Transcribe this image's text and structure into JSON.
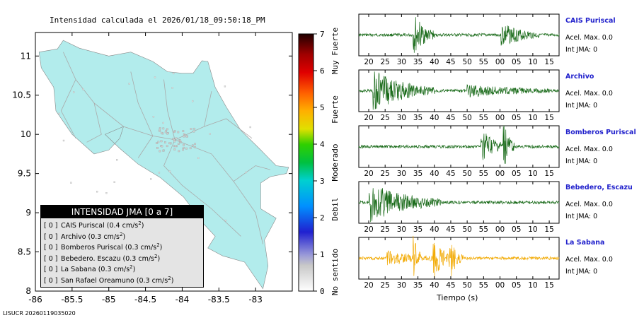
{
  "title": "Intensidad calculada el 2026/01/18_09:50:18_PM",
  "footer": "LISUCR 20260119035020",
  "colors": {
    "land": "#b2ecec",
    "road": "#aaaaaa",
    "wave": "#1a6b1a",
    "wave_highlight": "#f2a900",
    "station_name": "#2222cc"
  },
  "map": {
    "x_ticks": [
      "-86",
      "-85.5",
      "-85",
      "-84.5",
      "-84",
      "-83.5",
      "-83"
    ],
    "y_ticks": [
      "11",
      "10.5",
      "10",
      "9.5",
      "9",
      "8.5",
      "8"
    ],
    "xlim": [
      -86,
      -82.5
    ],
    "ylim": [
      8,
      11.3
    ]
  },
  "legend": {
    "header": "INTENSIDAD JMA [0 a 7]",
    "items": [
      {
        "bracket": "[ 0 ]",
        "label": "CAIS Puriscal (0.4 cm/s",
        "sup": "2",
        "close": ")"
      },
      {
        "bracket": "[ 0 ]",
        "label": "Archivo (0.3 cm/s",
        "sup": "2",
        "close": ")"
      },
      {
        "bracket": "[ 0 ]",
        "label": "Bomberos Puriscal (0.3 cm/s",
        "sup": "2",
        "close": ")"
      },
      {
        "bracket": "[ 0 ]",
        "label": "Bebedero. Escazu (0.3 cm/s",
        "sup": "2",
        "close": ")"
      },
      {
        "bracket": "[ 0 ]",
        "label": "La Sabana (0.3 cm/s",
        "sup": "2",
        "close": ")"
      },
      {
        "bracket": "[ 0 ]",
        "label": "San Rafael Oreamuno (0.3 cm/s",
        "sup": "2",
        "close": ")"
      }
    ]
  },
  "scale": {
    "ticks": [
      "0",
      "1",
      "2",
      "3",
      "4",
      "5",
      "6",
      "7"
    ],
    "categories": [
      "No sentido",
      "Debil",
      "Moderado",
      "Fuerte",
      "Muy Fuerte"
    ]
  },
  "chart_data": {
    "type": "line",
    "xlabel": "Tiempo (s)",
    "x_tick_labels": [
      "20",
      "25",
      "30",
      "35",
      "40",
      "45",
      "50",
      "55",
      "00",
      "05",
      "10",
      "15"
    ],
    "stations": [
      {
        "name": "CAIS Puriscal",
        "accel": "Acel. Max. 0.0",
        "int": "Int JMA: 0",
        "highlight": false
      },
      {
        "name": "Archivo",
        "accel": "Acel. Max. 0.0",
        "int": "Int JMA: 0",
        "highlight": false
      },
      {
        "name": "Bomberos Puriscal",
        "accel": "Acel. Max. 0.0",
        "int": "Int JMA: 0",
        "highlight": false
      },
      {
        "name": "Bebedero, Escazu",
        "accel": "Acel. Max. 0.0",
        "int": "Int JMA: 0",
        "highlight": false
      },
      {
        "name": "La Sabana",
        "accel": "Acel. Max. 0.0",
        "int": "Int JMA: 0",
        "highlight": true
      }
    ]
  }
}
